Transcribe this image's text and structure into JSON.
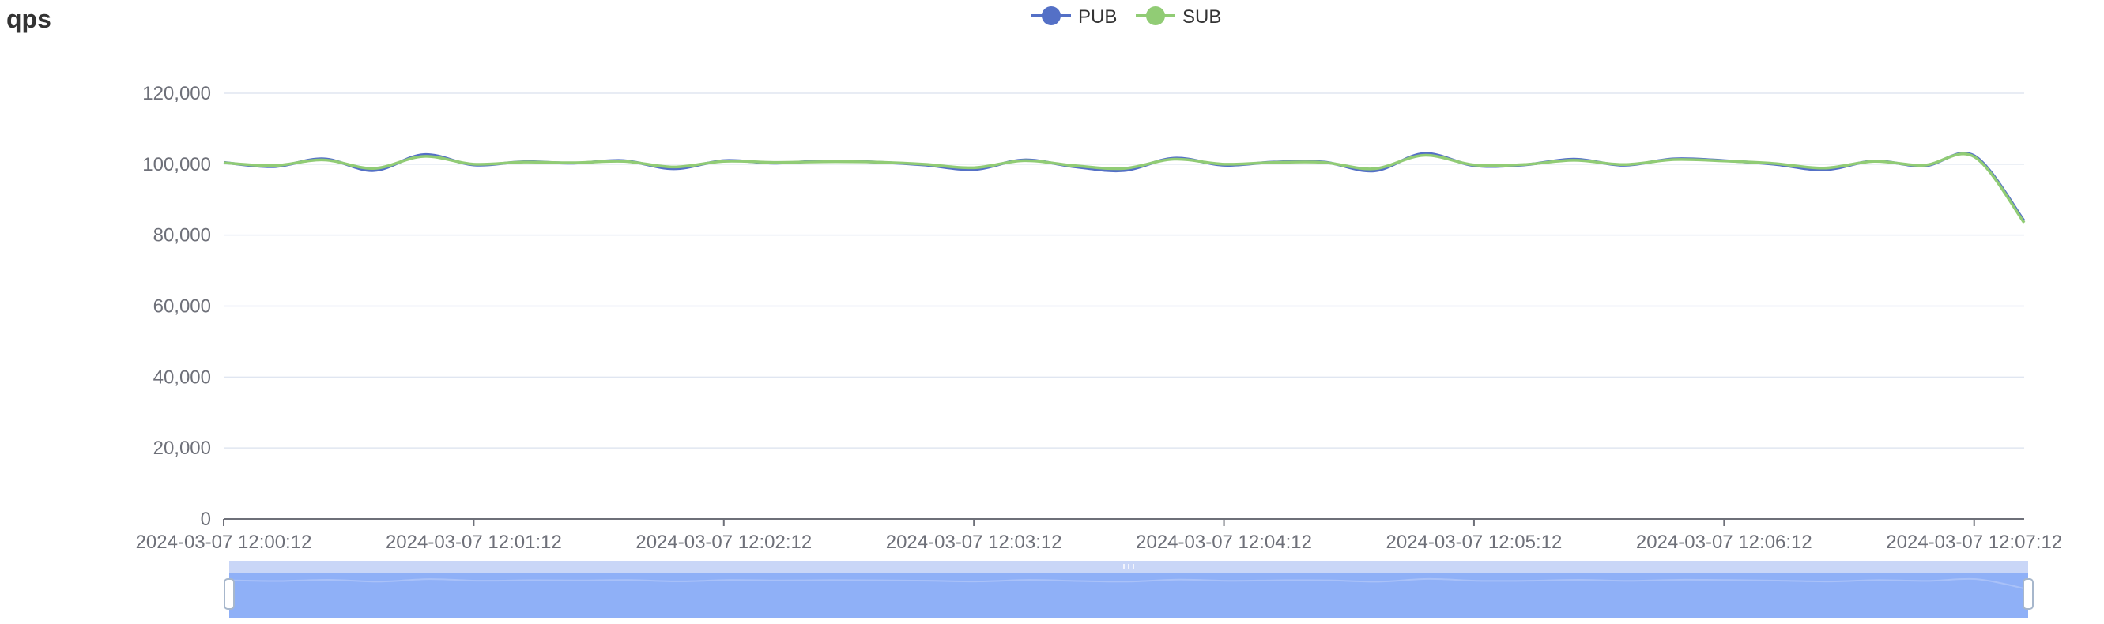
{
  "title": "qps",
  "colors": {
    "pub": "#5470c6",
    "sub": "#91cc75",
    "grid": "#e0e6f1",
    "axis": "#6e7079",
    "zoom_fill": "#8fb0f7",
    "zoom_bar": "#c9d6f7"
  },
  "chart_data": {
    "type": "line",
    "title": "qps",
    "xlabel": "",
    "ylabel": "",
    "ylim": [
      0,
      120000
    ],
    "y_ticks": [
      "0",
      "20,000",
      "40,000",
      "60,000",
      "80,000",
      "100,000",
      "120,000"
    ],
    "x_range": [
      "2024-03-07 12:00:12",
      "2024-03-07 12:07:24"
    ],
    "x_ticks": [
      "2024-03-07 12:00:12",
      "2024-03-07 12:01:12",
      "2024-03-07 12:02:12",
      "2024-03-07 12:03:12",
      "2024-03-07 12:04:12",
      "2024-03-07 12:05:12",
      "2024-03-07 12:06:12",
      "2024-03-07 12:07:12"
    ],
    "legend": {
      "placement": "top-center",
      "entries": [
        "PUB",
        "SUB"
      ]
    },
    "grid": true,
    "data_zoom": true,
    "x": [
      "2024-03-07 12:00:12",
      "2024-03-07 12:00:24",
      "2024-03-07 12:00:36",
      "2024-03-07 12:00:48",
      "2024-03-07 12:01:00",
      "2024-03-07 12:01:12",
      "2024-03-07 12:01:24",
      "2024-03-07 12:01:36",
      "2024-03-07 12:01:48",
      "2024-03-07 12:02:00",
      "2024-03-07 12:02:12",
      "2024-03-07 12:02:24",
      "2024-03-07 12:02:36",
      "2024-03-07 12:02:48",
      "2024-03-07 12:03:00",
      "2024-03-07 12:03:12",
      "2024-03-07 12:03:24",
      "2024-03-07 12:03:36",
      "2024-03-07 12:03:48",
      "2024-03-07 12:04:00",
      "2024-03-07 12:04:12",
      "2024-03-07 12:04:24",
      "2024-03-07 12:04:36",
      "2024-03-07 12:04:48",
      "2024-03-07 12:05:00",
      "2024-03-07 12:05:12",
      "2024-03-07 12:05:24",
      "2024-03-07 12:05:36",
      "2024-03-07 12:05:48",
      "2024-03-07 12:06:00",
      "2024-03-07 12:06:12",
      "2024-03-07 12:06:24",
      "2024-03-07 12:06:36",
      "2024-03-07 12:06:48",
      "2024-03-07 12:07:00",
      "2024-03-07 12:07:12",
      "2024-03-07 12:07:24"
    ],
    "series": [
      {
        "name": "PUB",
        "values": [
          100500,
          99300,
          101500,
          98200,
          102700,
          99800,
          100700,
          100300,
          101000,
          98700,
          101000,
          100300,
          100900,
          100600,
          99800,
          98500,
          101200,
          99300,
          98200,
          101700,
          99700,
          100600,
          100600,
          98100,
          103000,
          99600,
          99800,
          101400,
          99700,
          101500,
          101000,
          100000,
          98400,
          100900,
          99500,
          102400,
          84000
        ]
      },
      {
        "name": "SUB",
        "values": [
          100400,
          99600,
          101200,
          98800,
          102200,
          100000,
          100600,
          100400,
          100800,
          99200,
          100800,
          100500,
          100700,
          100600,
          100000,
          99000,
          101000,
          99600,
          98800,
          101400,
          100000,
          100500,
          100500,
          98700,
          102500,
          99800,
          99900,
          101100,
          99900,
          101300,
          100900,
          100200,
          98900,
          100800,
          99700,
          102100,
          83500
        ]
      }
    ]
  }
}
